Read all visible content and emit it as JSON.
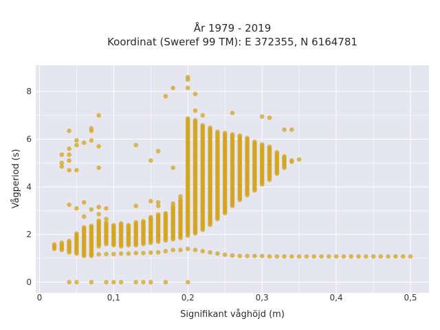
{
  "chart_data": {
    "type": "scatter",
    "title": "År 1979 - 2019",
    "subtitle": "Koordinat (Sweref 99 TM): E 372355, N 6164781",
    "xlabel": "Signifikant våghöjd (m)",
    "ylabel": "Vågperiod (s)",
    "xlim": [
      -0.005,
      0.525
    ],
    "ylim": [
      -0.45,
      9.1
    ],
    "x_ticks": [
      0,
      0.1,
      0.2,
      0.3,
      0.4,
      0.5
    ],
    "x_tick_labels": [
      "0",
      "0,1",
      "0,2",
      "0,3",
      "0,4",
      "0,5"
    ],
    "y_ticks": [
      0,
      2,
      4,
      6,
      8
    ],
    "y_tick_labels": [
      "0",
      "2",
      "4",
      "6",
      "8"
    ],
    "grid": true,
    "marker_color": "#d4a41e",
    "background_color": "#e5e6ef",
    "point_columns": [
      {
        "x": 0.02,
        "ymin": 1.4,
        "ymax": 1.6
      },
      {
        "x": 0.03,
        "ymin": 1.35,
        "ymax": 1.65
      },
      {
        "x": 0.04,
        "ymin": 1.25,
        "ymax": 1.75
      },
      {
        "x": 0.05,
        "ymin": 1.2,
        "ymax": 2.05
      },
      {
        "x": 0.06,
        "ymin": 1.1,
        "ymax": 2.3
      },
      {
        "x": 0.07,
        "ymin": 1.1,
        "ymax": 2.4
      },
      {
        "x": 0.08,
        "ymin": 1.5,
        "ymax": 2.6
      },
      {
        "x": 0.09,
        "ymin": 1.6,
        "ymax": 2.5
      },
      {
        "x": 0.1,
        "ymin": 1.55,
        "ymax": 2.4
      },
      {
        "x": 0.11,
        "ymin": 1.5,
        "ymax": 2.5
      },
      {
        "x": 0.12,
        "ymin": 1.55,
        "ymax": 2.4
      },
      {
        "x": 0.13,
        "ymin": 1.55,
        "ymax": 2.55
      },
      {
        "x": 0.14,
        "ymin": 1.6,
        "ymax": 2.6
      },
      {
        "x": 0.15,
        "ymin": 1.65,
        "ymax": 2.75
      },
      {
        "x": 0.16,
        "ymin": 1.7,
        "ymax": 2.85
      },
      {
        "x": 0.17,
        "ymin": 1.75,
        "ymax": 2.9
      },
      {
        "x": 0.18,
        "ymin": 1.8,
        "ymax": 3.2
      },
      {
        "x": 0.19,
        "ymin": 1.85,
        "ymax": 3.5
      },
      {
        "x": 0.2,
        "ymin": 1.95,
        "ymax": 6.9
      },
      {
        "x": 0.21,
        "ymin": 2.05,
        "ymax": 6.8
      },
      {
        "x": 0.22,
        "ymin": 2.2,
        "ymax": 6.6
      },
      {
        "x": 0.23,
        "ymin": 2.4,
        "ymax": 6.5
      },
      {
        "x": 0.24,
        "ymin": 2.65,
        "ymax": 6.35
      },
      {
        "x": 0.25,
        "ymin": 2.9,
        "ymax": 6.3
      },
      {
        "x": 0.26,
        "ymin": 3.2,
        "ymax": 6.2
      },
      {
        "x": 0.27,
        "ymin": 3.45,
        "ymax": 6.15
      },
      {
        "x": 0.28,
        "ymin": 3.65,
        "ymax": 6.05
      },
      {
        "x": 0.29,
        "ymin": 3.85,
        "ymax": 5.9
      },
      {
        "x": 0.3,
        "ymin": 4.1,
        "ymax": 5.8
      },
      {
        "x": 0.31,
        "ymin": 4.3,
        "ymax": 5.7
      },
      {
        "x": 0.32,
        "ymin": 4.55,
        "ymax": 5.5
      },
      {
        "x": 0.33,
        "ymin": 4.8,
        "ymax": 5.3
      },
      {
        "x": 0.34,
        "ymin": 5.05,
        "ymax": 5.15
      }
    ],
    "band_points": [
      {
        "x": 0.07,
        "y": 1.17
      },
      {
        "x": 0.08,
        "y": 1.17
      },
      {
        "x": 0.09,
        "y": 1.18
      },
      {
        "x": 0.1,
        "y": 1.18
      },
      {
        "x": 0.11,
        "y": 1.2
      },
      {
        "x": 0.12,
        "y": 1.2
      },
      {
        "x": 0.13,
        "y": 1.22
      },
      {
        "x": 0.14,
        "y": 1.22
      },
      {
        "x": 0.15,
        "y": 1.24
      },
      {
        "x": 0.16,
        "y": 1.25
      },
      {
        "x": 0.17,
        "y": 1.3
      },
      {
        "x": 0.18,
        "y": 1.35
      },
      {
        "x": 0.19,
        "y": 1.35
      },
      {
        "x": 0.2,
        "y": 1.4
      },
      {
        "x": 0.21,
        "y": 1.35
      },
      {
        "x": 0.22,
        "y": 1.3
      },
      {
        "x": 0.23,
        "y": 1.25
      },
      {
        "x": 0.24,
        "y": 1.2
      },
      {
        "x": 0.25,
        "y": 1.15
      },
      {
        "x": 0.26,
        "y": 1.12
      },
      {
        "x": 0.27,
        "y": 1.1
      },
      {
        "x": 0.28,
        "y": 1.1
      },
      {
        "x": 0.29,
        "y": 1.1
      },
      {
        "x": 0.3,
        "y": 1.1
      },
      {
        "x": 0.31,
        "y": 1.08
      },
      {
        "x": 0.32,
        "y": 1.08
      },
      {
        "x": 0.33,
        "y": 1.08
      },
      {
        "x": 0.34,
        "y": 1.08
      },
      {
        "x": 0.35,
        "y": 1.08
      },
      {
        "x": 0.36,
        "y": 1.08
      },
      {
        "x": 0.37,
        "y": 1.08
      },
      {
        "x": 0.38,
        "y": 1.08
      },
      {
        "x": 0.39,
        "y": 1.08
      },
      {
        "x": 0.4,
        "y": 1.08
      },
      {
        "x": 0.41,
        "y": 1.08
      },
      {
        "x": 0.42,
        "y": 1.08
      },
      {
        "x": 0.43,
        "y": 1.08
      },
      {
        "x": 0.44,
        "y": 1.08
      },
      {
        "x": 0.45,
        "y": 1.08
      },
      {
        "x": 0.46,
        "y": 1.08
      },
      {
        "x": 0.47,
        "y": 1.08
      },
      {
        "x": 0.48,
        "y": 1.08
      },
      {
        "x": 0.49,
        "y": 1.08
      },
      {
        "x": 0.5,
        "y": 1.08
      }
    ],
    "outlier_points": [
      {
        "x": 0.03,
        "y": 5.35
      },
      {
        "x": 0.03,
        "y": 5.0
      },
      {
        "x": 0.03,
        "y": 4.85
      },
      {
        "x": 0.04,
        "y": 6.35
      },
      {
        "x": 0.04,
        "y": 5.6
      },
      {
        "x": 0.04,
        "y": 5.35
      },
      {
        "x": 0.04,
        "y": 5.1
      },
      {
        "x": 0.04,
        "y": 4.7
      },
      {
        "x": 0.05,
        "y": 5.95
      },
      {
        "x": 0.05,
        "y": 5.75
      },
      {
        "x": 0.05,
        "y": 4.7
      },
      {
        "x": 0.06,
        "y": 5.85
      },
      {
        "x": 0.07,
        "y": 6.45
      },
      {
        "x": 0.07,
        "y": 6.35
      },
      {
        "x": 0.07,
        "y": 5.95
      },
      {
        "x": 0.08,
        "y": 7.0
      },
      {
        "x": 0.08,
        "y": 5.7
      },
      {
        "x": 0.08,
        "y": 4.8
      },
      {
        "x": 0.13,
        "y": 5.75
      },
      {
        "x": 0.15,
        "y": 5.1
      },
      {
        "x": 0.16,
        "y": 5.5
      },
      {
        "x": 0.17,
        "y": 7.8
      },
      {
        "x": 0.18,
        "y": 8.15
      },
      {
        "x": 0.18,
        "y": 4.8
      },
      {
        "x": 0.2,
        "y": 8.6
      },
      {
        "x": 0.2,
        "y": 8.5
      },
      {
        "x": 0.2,
        "y": 8.15
      },
      {
        "x": 0.21,
        "y": 7.9
      },
      {
        "x": 0.21,
        "y": 7.2
      },
      {
        "x": 0.22,
        "y": 7.0
      },
      {
        "x": 0.26,
        "y": 7.1
      },
      {
        "x": 0.3,
        "y": 6.95
      },
      {
        "x": 0.31,
        "y": 6.9
      },
      {
        "x": 0.33,
        "y": 6.4
      },
      {
        "x": 0.34,
        "y": 6.4
      },
      {
        "x": 0.35,
        "y": 5.15
      },
      {
        "x": 0.04,
        "y": 3.25
      },
      {
        "x": 0.05,
        "y": 3.1
      },
      {
        "x": 0.06,
        "y": 3.35
      },
      {
        "x": 0.06,
        "y": 2.75
      },
      {
        "x": 0.07,
        "y": 3.05
      },
      {
        "x": 0.08,
        "y": 3.15
      },
      {
        "x": 0.08,
        "y": 2.85
      },
      {
        "x": 0.09,
        "y": 3.1
      },
      {
        "x": 0.09,
        "y": 2.65
      },
      {
        "x": 0.13,
        "y": 3.2
      },
      {
        "x": 0.15,
        "y": 3.4
      },
      {
        "x": 0.16,
        "y": 3.35
      },
      {
        "x": 0.16,
        "y": 3.2
      },
      {
        "x": 0.18,
        "y": 3.3
      },
      {
        "x": 0.19,
        "y": 3.6
      },
      {
        "x": 0.04,
        "y": 0
      },
      {
        "x": 0.05,
        "y": 0
      },
      {
        "x": 0.07,
        "y": 0
      },
      {
        "x": 0.09,
        "y": 0
      },
      {
        "x": 0.1,
        "y": 0
      },
      {
        "x": 0.11,
        "y": 0
      },
      {
        "x": 0.13,
        "y": 0
      },
      {
        "x": 0.14,
        "y": 0
      },
      {
        "x": 0.15,
        "y": 0
      },
      {
        "x": 0.17,
        "y": 0
      },
      {
        "x": 0.2,
        "y": 0
      }
    ]
  }
}
